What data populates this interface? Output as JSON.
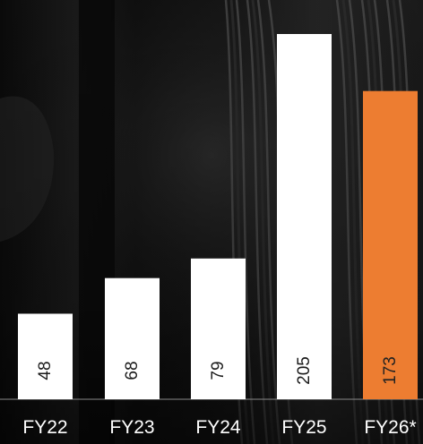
{
  "chart_data": {
    "type": "bar",
    "categories": [
      "FY22",
      "FY23",
      "FY24",
      "FY25",
      "FY26*"
    ],
    "values": [
      48,
      68,
      79,
      205,
      173
    ],
    "value_labels": [
      "48",
      "68",
      "79",
      "205",
      "173"
    ],
    "ylim": [
      0,
      220
    ],
    "grid": false,
    "legend": "none",
    "colors": {
      "bar": "#ffffff",
      "highlight_bar": "#ed7d31",
      "value_text": "#1a1a1a",
      "highlight_value_text": "#222222",
      "tick_text": "#ffffff",
      "baseline": "#8a8a8a",
      "background": "#050505"
    },
    "highlight_index": 4
  }
}
